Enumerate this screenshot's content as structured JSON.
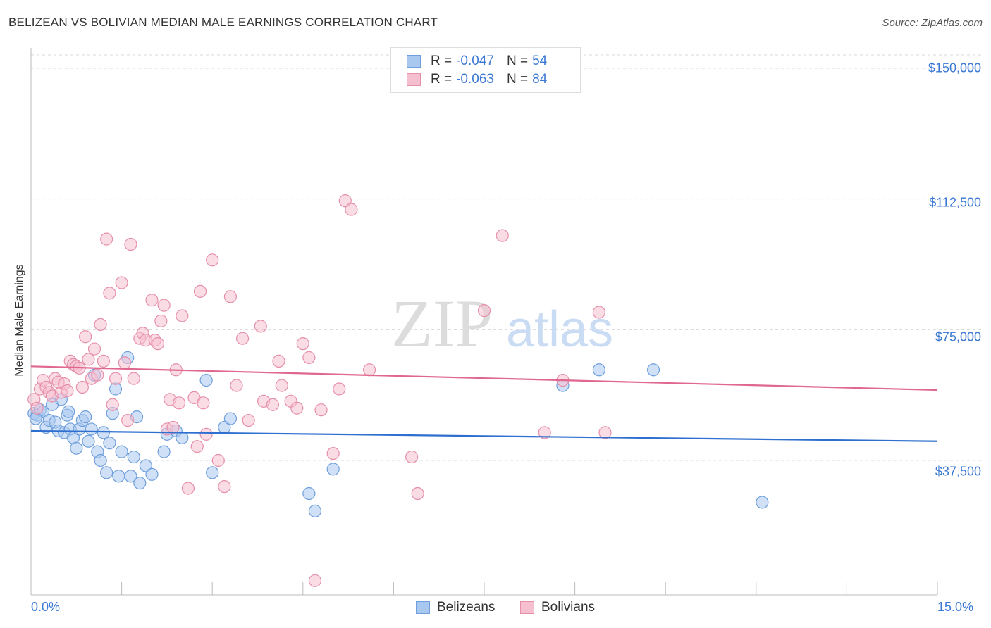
{
  "title": "BELIZEAN VS BOLIVIAN MEDIAN MALE EARNINGS CORRELATION CHART",
  "source": "Source: ZipAtlas.com",
  "watermark": {
    "zip": "ZIP",
    "atlas": "atlas"
  },
  "legend": {
    "rows": [
      {
        "r_label": "R = ",
        "r_value": "-0.047",
        "n_label": "N = ",
        "n_value": "54"
      },
      {
        "r_label": "R = ",
        "r_value": "-0.063",
        "n_label": "N = ",
        "n_value": "84"
      }
    ]
  },
  "bottom_legend": {
    "series1": "Belizeans",
    "series2": "Bolivians"
  },
  "colors": {
    "blue_fill": "#a9c8f0",
    "blue_stroke": "#6f9fdc",
    "blue_line": "#2f6fcf",
    "pink_fill": "#f6bfd0",
    "pink_stroke": "#e68fab",
    "pink_line": "#e0678f",
    "tick_text": "#3a78d4",
    "grid": "#d8d8d8"
  },
  "chart_data": {
    "type": "scatter",
    "title": "BELIZEAN VS BOLIVIAN MEDIAN MALE EARNINGS CORRELATION CHART",
    "xlabel": "",
    "ylabel": "Median Male Earnings",
    "xlim": [
      0,
      15
    ],
    "ylim": [
      0,
      157000
    ],
    "x_tick_labels": [
      "0.0%",
      "15.0%"
    ],
    "y_ticks": [
      37500,
      75000,
      112500,
      150000
    ],
    "y_tick_labels": [
      "$37,500",
      "$75,000",
      "$112,500",
      "$150,000"
    ],
    "grid": "horizontal dashed",
    "series": [
      {
        "name": "Belizeans",
        "color": "#a9c8f0",
        "trend": {
          "x": [
            0,
            15
          ],
          "y": [
            46000,
            43000
          ]
        },
        "points": [
          [
            0.05,
            51000
          ],
          [
            0.1,
            50500
          ],
          [
            0.15,
            52000
          ],
          [
            0.2,
            51500
          ],
          [
            0.25,
            47000
          ],
          [
            0.3,
            49000
          ],
          [
            0.35,
            53500
          ],
          [
            0.4,
            48500
          ],
          [
            0.45,
            46000
          ],
          [
            0.5,
            55000
          ],
          [
            0.55,
            45500
          ],
          [
            0.6,
            50500
          ],
          [
            0.62,
            51500
          ],
          [
            0.65,
            46500
          ],
          [
            0.7,
            44000
          ],
          [
            0.75,
            41000
          ],
          [
            0.8,
            46500
          ],
          [
            0.85,
            49000
          ],
          [
            0.9,
            50000
          ],
          [
            0.95,
            43000
          ],
          [
            1.0,
            46500
          ],
          [
            1.05,
            62000
          ],
          [
            1.1,
            40000
          ],
          [
            1.15,
            37500
          ],
          [
            1.2,
            45500
          ],
          [
            1.25,
            34000
          ],
          [
            1.3,
            42500
          ],
          [
            1.35,
            51000
          ],
          [
            1.4,
            58000
          ],
          [
            1.45,
            33000
          ],
          [
            1.5,
            40000
          ],
          [
            1.6,
            67000
          ],
          [
            1.65,
            33000
          ],
          [
            1.7,
            38500
          ],
          [
            1.75,
            50000
          ],
          [
            1.8,
            31000
          ],
          [
            1.9,
            36000
          ],
          [
            2.0,
            33500
          ],
          [
            2.2,
            40000
          ],
          [
            2.25,
            45000
          ],
          [
            2.4,
            46000
          ],
          [
            2.5,
            44000
          ],
          [
            2.9,
            60500
          ],
          [
            3.0,
            34000
          ],
          [
            3.2,
            47000
          ],
          [
            3.3,
            49500
          ],
          [
            4.6,
            28000
          ],
          [
            4.7,
            23000
          ],
          [
            5.0,
            35000
          ],
          [
            8.8,
            59000
          ],
          [
            9.4,
            63500
          ],
          [
            10.3,
            63500
          ],
          [
            12.1,
            25500
          ],
          [
            0.08,
            49500
          ]
        ]
      },
      {
        "name": "Bolivians",
        "color": "#f6bfd0",
        "trend": {
          "x": [
            0,
            15
          ],
          "y": [
            64500,
            57700
          ]
        },
        "points": [
          [
            0.05,
            55000
          ],
          [
            0.1,
            52500
          ],
          [
            0.15,
            58000
          ],
          [
            0.2,
            60500
          ],
          [
            0.25,
            58500
          ],
          [
            0.3,
            57000
          ],
          [
            0.35,
            56000
          ],
          [
            0.4,
            61000
          ],
          [
            0.45,
            60000
          ],
          [
            0.5,
            57000
          ],
          [
            0.55,
            59500
          ],
          [
            0.6,
            57500
          ],
          [
            0.65,
            66000
          ],
          [
            0.7,
            65000
          ],
          [
            0.75,
            64500
          ],
          [
            0.8,
            64000
          ],
          [
            0.85,
            58500
          ],
          [
            0.9,
            73000
          ],
          [
            0.95,
            66500
          ],
          [
            1.0,
            61000
          ],
          [
            1.05,
            69500
          ],
          [
            1.1,
            62000
          ],
          [
            1.15,
            76500
          ],
          [
            1.2,
            66000
          ],
          [
            1.25,
            101000
          ],
          [
            1.3,
            85500
          ],
          [
            1.35,
            53500
          ],
          [
            1.4,
            61000
          ],
          [
            1.5,
            88500
          ],
          [
            1.55,
            65500
          ],
          [
            1.6,
            49000
          ],
          [
            1.65,
            99500
          ],
          [
            1.7,
            61000
          ],
          [
            1.8,
            72500
          ],
          [
            1.85,
            74000
          ],
          [
            1.9,
            72000
          ],
          [
            2.0,
            83500
          ],
          [
            2.05,
            72000
          ],
          [
            2.1,
            71000
          ],
          [
            2.15,
            77500
          ],
          [
            2.2,
            82000
          ],
          [
            2.25,
            46500
          ],
          [
            2.3,
            55000
          ],
          [
            2.35,
            47000
          ],
          [
            2.4,
            63500
          ],
          [
            2.45,
            54000
          ],
          [
            2.5,
            79000
          ],
          [
            2.6,
            29500
          ],
          [
            2.7,
            55500
          ],
          [
            2.75,
            41500
          ],
          [
            2.8,
            86000
          ],
          [
            2.85,
            54000
          ],
          [
            2.9,
            45000
          ],
          [
            3.0,
            95000
          ],
          [
            3.1,
            37500
          ],
          [
            3.2,
            30000
          ],
          [
            3.3,
            84500
          ],
          [
            3.4,
            59000
          ],
          [
            3.5,
            72500
          ],
          [
            3.6,
            49000
          ],
          [
            3.8,
            76000
          ],
          [
            3.85,
            54500
          ],
          [
            4.0,
            53500
          ],
          [
            4.1,
            66000
          ],
          [
            4.15,
            59000
          ],
          [
            4.3,
            54500
          ],
          [
            4.4,
            52500
          ],
          [
            4.5,
            71000
          ],
          [
            4.6,
            67000
          ],
          [
            4.7,
            3000
          ],
          [
            4.8,
            52000
          ],
          [
            5.0,
            39500
          ],
          [
            5.1,
            58000
          ],
          [
            5.2,
            112000
          ],
          [
            5.3,
            109500
          ],
          [
            5.6,
            63500
          ],
          [
            6.3,
            38500
          ],
          [
            6.4,
            28000
          ],
          [
            7.5,
            80500
          ],
          [
            7.8,
            102000
          ],
          [
            8.5,
            45500
          ],
          [
            8.8,
            60500
          ],
          [
            9.4,
            80000
          ],
          [
            9.5,
            45500
          ]
        ]
      }
    ]
  }
}
